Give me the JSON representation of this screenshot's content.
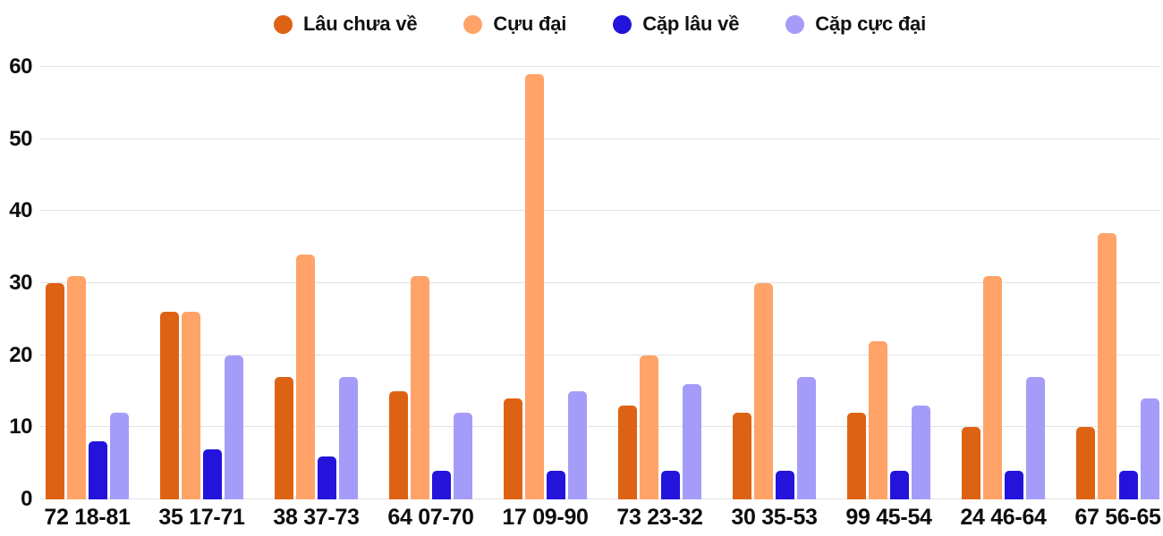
{
  "chart_data": {
    "type": "bar",
    "title": "",
    "xlabel": "",
    "ylabel": "",
    "categories": [
      "72 18-81",
      "35 17-71",
      "38 37-73",
      "64 07-70",
      "17 09-90",
      "73 23-32",
      "30 35-53",
      "99 45-54",
      "24 46-64",
      "67 56-65"
    ],
    "series": [
      {
        "name": "Lâu chưa về",
        "color": "#DE6213",
        "values": [
          30,
          26,
          17,
          15,
          14,
          13,
          12,
          12,
          10,
          10
        ]
      },
      {
        "name": "Cựu đại",
        "color": "#FFA368",
        "values": [
          31,
          26,
          34,
          31,
          59,
          20,
          30,
          22,
          31,
          37
        ]
      },
      {
        "name": "Cặp lâu về",
        "color": "#2414DB",
        "values": [
          8,
          7,
          6,
          4,
          4,
          4,
          4,
          4,
          4,
          4
        ]
      },
      {
        "name": "Cặp cực đại",
        "color": "#A49CF8",
        "values": [
          12,
          20,
          17,
          12,
          15,
          16,
          17,
          13,
          17,
          14
        ]
      }
    ],
    "yticks": [
      0,
      10,
      20,
      30,
      40,
      50,
      60
    ],
    "ylim": [
      0,
      60
    ],
    "grid": true,
    "legend_position": "top"
  },
  "colors": {
    "background": "#ffffff",
    "gridline": "#e2e2e2",
    "text": "#0d0d0d"
  }
}
